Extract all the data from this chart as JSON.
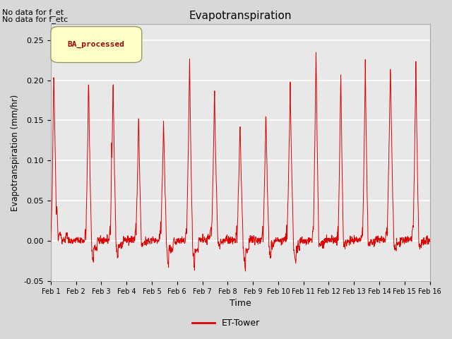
{
  "title": "Evapotranspiration",
  "xlabel": "Time",
  "ylabel": "Evapotranspiration (mm/hr)",
  "ylim": [
    -0.05,
    0.27
  ],
  "xlim": [
    0,
    15
  ],
  "xtick_labels": [
    "Feb 1",
    "Feb 2",
    "Feb 3",
    "Feb 4",
    "Feb 5",
    "Feb 6",
    "Feb 7",
    "Feb 8",
    "Feb 9",
    "Feb 10",
    "Feb 11",
    "Feb 12",
    "Feb 13",
    "Feb 14",
    "Feb 15",
    "Feb 16"
  ],
  "line_color": "#dd0000",
  "line_label": "ET-Tower",
  "legend_box_label": "BA_processed",
  "annotation1": "No data for f_et",
  "annotation2": "No data for f_etc",
  "day_peaks": [
    0.212,
    0.212,
    0.208,
    0.167,
    0.158,
    0.238,
    0.188,
    0.153,
    0.165,
    0.199,
    0.245,
    0.217,
    0.228,
    0.228,
    0.228
  ],
  "day_secondary_peaks": [
    0.05,
    0.06,
    0.125,
    0.14,
    0.11,
    0.145,
    0.133,
    0.15,
    0.162,
    0.175,
    0.08,
    0.185,
    0.188,
    0.183,
    0.178
  ],
  "day_troughs": [
    -0.005,
    -0.028,
    -0.02,
    -0.005,
    -0.035,
    -0.038,
    -0.005,
    -0.038,
    -0.02,
    -0.025,
    -0.005,
    -0.005,
    -0.005,
    -0.012,
    -0.005
  ],
  "bg_color": "#e8e8e8",
  "fig_bg_color": "#d8d8d8",
  "yticks": [
    -0.05,
    0.0,
    0.05,
    0.1,
    0.15,
    0.2,
    0.25
  ]
}
